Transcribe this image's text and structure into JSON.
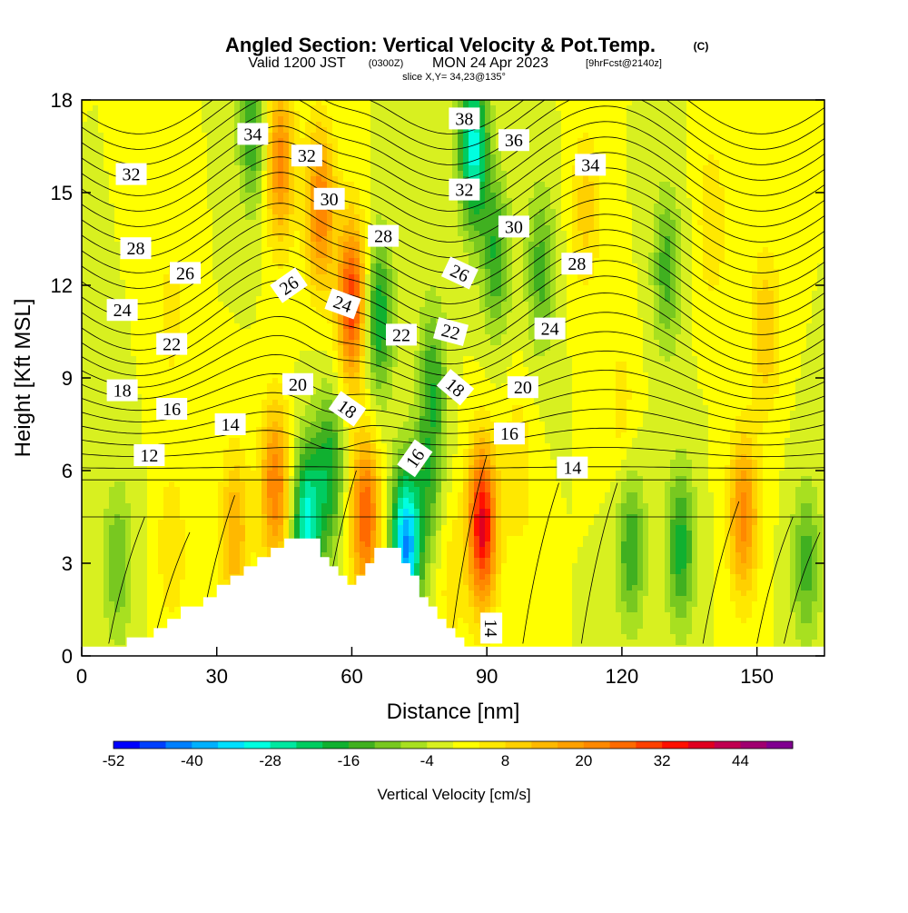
{
  "title": {
    "line1": "Angled Section: Vertical Velocity & Pot.Temp.",
    "line1_unit": "(C)",
    "line2_a": "Valid 1200 JST",
    "line2_b": "(0300Z)",
    "line2_c": "MON 24 Apr 2023",
    "line2_d": "[9hrFcst@2140z]",
    "line3": "slice X,Y= 34,23@135°"
  },
  "chart_data": {
    "type": "heatmap",
    "xlabel": "Distance [nm]",
    "ylabel": "Height [Kft MSL]",
    "xlim": [
      0,
      165
    ],
    "ylim": [
      0,
      18
    ],
    "xticks": [
      0,
      30,
      60,
      90,
      120,
      150
    ],
    "yticks": [
      0,
      3,
      6,
      9,
      12,
      15,
      18
    ],
    "xtick_labels": [
      "0",
      "30",
      "60",
      "90",
      "120",
      "150"
    ],
    "ytick_labels": [
      "0",
      "3",
      "6",
      "9",
      "12",
      "15",
      "18"
    ],
    "colorbar": {
      "label": "Vertical Velocity [cm/s]",
      "min": -52,
      "max": 52,
      "step": 4,
      "tick_values": [
        -52,
        -40,
        -28,
        -16,
        -4,
        8,
        20,
        32,
        44
      ],
      "tick_labels": [
        "-52",
        "-40",
        "-28",
        "-16",
        "-4",
        "8",
        "20",
        "32",
        "44"
      ],
      "colors": [
        "#0000ff",
        "#0040ff",
        "#0080ff",
        "#00b0ff",
        "#00e0ff",
        "#00ffe0",
        "#00e8a0",
        "#00cc60",
        "#10b030",
        "#40b020",
        "#78c820",
        "#a8e020",
        "#d8f020",
        "#ffff00",
        "#ffe800",
        "#ffd000",
        "#ffb800",
        "#ffa000",
        "#ff8800",
        "#ff6a00",
        "#ff4000",
        "#ff1000",
        "#e00020",
        "#c00050",
        "#a00070",
        "#800090"
      ]
    },
    "velocity_features": [
      {
        "x": 8,
        "z": 3.0,
        "w": -12
      },
      {
        "x": 20,
        "z": 3.5,
        "w": 8
      },
      {
        "x": 34,
        "z": 4.0,
        "w": 16
      },
      {
        "x": 43,
        "z": 5.5,
        "w": 24
      },
      {
        "x": 50,
        "z": 4.2,
        "w": -30
      },
      {
        "x": 55,
        "z": 6.0,
        "w": -18
      },
      {
        "x": 63,
        "z": 4.5,
        "w": 28
      },
      {
        "x": 72,
        "z": 3.5,
        "w": -40
      },
      {
        "x": 77,
        "z": 5.5,
        "w": -12
      },
      {
        "x": 82,
        "z": 2.5,
        "w": 6
      },
      {
        "x": 89,
        "z": 4.2,
        "w": 38
      },
      {
        "x": 97,
        "z": 6.0,
        "w": 8
      },
      {
        "x": 122,
        "z": 3.5,
        "w": -16
      },
      {
        "x": 133,
        "z": 3.5,
        "w": -18
      },
      {
        "x": 147,
        "z": 4.5,
        "w": 22
      },
      {
        "x": 161,
        "z": 3.0,
        "w": -14
      },
      {
        "x": 60,
        "z": 11.5,
        "w": 32
      },
      {
        "x": 53,
        "z": 14.5,
        "w": 24
      },
      {
        "x": 66,
        "z": 11.0,
        "w": -20
      },
      {
        "x": 78,
        "z": 9.0,
        "w": -14
      },
      {
        "x": 87,
        "z": 16.5,
        "w": -30
      },
      {
        "x": 92,
        "z": 13.0,
        "w": -16
      },
      {
        "x": 38,
        "z": 17.0,
        "w": -16
      },
      {
        "x": 44,
        "z": 16.0,
        "w": 22
      },
      {
        "x": 102,
        "z": 12.5,
        "w": -14
      },
      {
        "x": 112,
        "z": 14.5,
        "w": 10
      },
      {
        "x": 130,
        "z": 12.5,
        "w": -14
      },
      {
        "x": 140,
        "z": 14.0,
        "w": 8
      },
      {
        "x": 152,
        "z": 10.5,
        "w": 12
      },
      {
        "x": 120,
        "z": 8.0,
        "w": 6
      },
      {
        "x": 20,
        "z": 11.0,
        "w": 6
      }
    ],
    "terrain": [
      [
        10,
        0.6
      ],
      [
        13,
        0.6
      ],
      [
        16,
        0.9
      ],
      [
        19,
        1.2
      ],
      [
        22,
        1.6
      ],
      [
        25,
        1.6
      ],
      [
        27,
        1.9
      ],
      [
        30,
        2.3
      ],
      [
        33,
        2.6
      ],
      [
        36,
        2.9
      ],
      [
        39,
        3.2
      ],
      [
        42,
        3.5
      ],
      [
        45,
        3.8
      ],
      [
        48,
        3.8
      ],
      [
        51,
        3.8
      ],
      [
        53,
        3.2
      ],
      [
        55,
        2.9
      ],
      [
        57,
        2.6
      ],
      [
        59,
        2.3
      ],
      [
        61,
        2.6
      ],
      [
        63,
        3.0
      ],
      [
        65,
        3.5
      ],
      [
        68,
        3.5
      ],
      [
        70,
        3.5
      ],
      [
        71,
        3.0
      ],
      [
        73,
        2.6
      ],
      [
        75,
        1.9
      ],
      [
        77,
        1.6
      ],
      [
        79,
        1.2
      ],
      [
        81,
        0.9
      ],
      [
        83,
        0.6
      ],
      [
        85,
        0.3
      ],
      [
        87,
        0.3
      ]
    ],
    "isentrope_levels": [
      12,
      13,
      14,
      15,
      16,
      17,
      18,
      19,
      20,
      21,
      22,
      23,
      24,
      25,
      26,
      27,
      28,
      29,
      30,
      31,
      32,
      33,
      34,
      35,
      36,
      37,
      38
    ],
    "contour_labels": [
      {
        "text": "34",
        "x": 38,
        "z": 16.9,
        "angle": 0
      },
      {
        "text": "32",
        "x": 50,
        "z": 16.2,
        "angle": 0
      },
      {
        "text": "38",
        "x": 85,
        "z": 17.4,
        "angle": 0
      },
      {
        "text": "36",
        "x": 96,
        "z": 16.7,
        "angle": 0
      },
      {
        "text": "34",
        "x": 113,
        "z": 15.9,
        "angle": 0
      },
      {
        "text": "32",
        "x": 11,
        "z": 15.6,
        "angle": 0
      },
      {
        "text": "30",
        "x": 55,
        "z": 14.8,
        "angle": 0
      },
      {
        "text": "32",
        "x": 85,
        "z": 15.1,
        "angle": 0
      },
      {
        "text": "30",
        "x": 96,
        "z": 13.9,
        "angle": 0
      },
      {
        "text": "28",
        "x": 12,
        "z": 13.2,
        "angle": 0
      },
      {
        "text": "28",
        "x": 67,
        "z": 13.6,
        "angle": 0
      },
      {
        "text": "28",
        "x": 110,
        "z": 12.7,
        "angle": 0
      },
      {
        "text": "26",
        "x": 23,
        "z": 12.4,
        "angle": 0
      },
      {
        "text": "26",
        "x": 46,
        "z": 12.0,
        "angle": -35
      },
      {
        "text": "26",
        "x": 84,
        "z": 12.4,
        "angle": 25
      },
      {
        "text": "24",
        "x": 9,
        "z": 11.2,
        "angle": 0
      },
      {
        "text": "24",
        "x": 58,
        "z": 11.4,
        "angle": 20
      },
      {
        "text": "24",
        "x": 104,
        "z": 10.6,
        "angle": 0
      },
      {
        "text": "22",
        "x": 20,
        "z": 10.1,
        "angle": 0
      },
      {
        "text": "22",
        "x": 71,
        "z": 10.4,
        "angle": 0
      },
      {
        "text": "22",
        "x": 82,
        "z": 10.5,
        "angle": 15
      },
      {
        "text": "20",
        "x": 48,
        "z": 8.8,
        "angle": 0
      },
      {
        "text": "20",
        "x": 98,
        "z": 8.7,
        "angle": 0
      },
      {
        "text": "18",
        "x": 9,
        "z": 8.6,
        "angle": 0
      },
      {
        "text": "18",
        "x": 59,
        "z": 8.0,
        "angle": 35
      },
      {
        "text": "18",
        "x": 83,
        "z": 8.7,
        "angle": 40
      },
      {
        "text": "16",
        "x": 20,
        "z": 8.0,
        "angle": 0
      },
      {
        "text": "16",
        "x": 74,
        "z": 6.4,
        "angle": -55
      },
      {
        "text": "16",
        "x": 95,
        "z": 7.2,
        "angle": 0
      },
      {
        "text": "14",
        "x": 33,
        "z": 7.5,
        "angle": 0
      },
      {
        "text": "14",
        "x": 109,
        "z": 6.1,
        "angle": 0
      },
      {
        "text": "14",
        "x": 91,
        "z": 0.9,
        "angle": 90
      },
      {
        "text": "12",
        "x": 15,
        "z": 6.5,
        "angle": 0
      }
    ]
  }
}
